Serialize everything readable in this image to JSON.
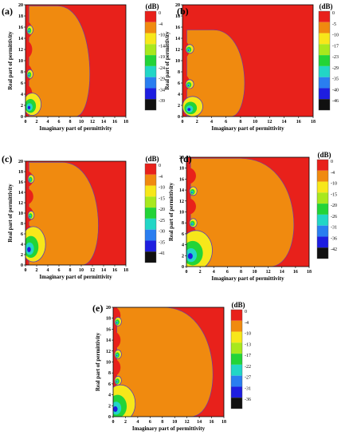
{
  "chart_data": [
    {
      "type": "heatmap",
      "panel": "(a)",
      "xlabel": "Imaginary part of permittivity",
      "ylabel": "Real part of permittivity",
      "xlim": [
        0,
        18
      ],
      "ylim": [
        0,
        20
      ],
      "xticks": [
        "0",
        "2",
        "4",
        "6",
        "8",
        "10",
        "12",
        "14",
        "16",
        "18"
      ],
      "yticks": [
        "0",
        "2",
        "4",
        "6",
        "8",
        "10",
        "12",
        "14",
        "16",
        "18",
        "20"
      ],
      "colorbar_title": "(dB)",
      "colorbar_levels": [
        "0",
        "-4",
        "-10",
        "-14",
        "-19",
        "-24",
        "-29",
        "-34",
        "-39"
      ],
      "colorbar_colors": [
        "#e8211b",
        "#f08a0f",
        "#f7e71a",
        "#a8e81d",
        "#23d437",
        "#22d6c6",
        "#2a7ef0",
        "#1e1ee0",
        "#101010"
      ],
      "region_profile": {
        "big_x": 12.8,
        "big_y": 19.8,
        "lobe_y": [
          15.5,
          12.0,
          7.8,
          4.1
        ],
        "lobe_depth": 1.2,
        "dip_y": [
          15.5,
          7.6,
          2.2
        ],
        "dip_x": 0.8,
        "dip_w": 1.6,
        "dip_h": 2.0
      }
    },
    {
      "type": "heatmap",
      "panel": "(b)",
      "xlabel": "Imaginary part of permittivity",
      "ylabel": "Real part of permittivity",
      "xlim": [
        0,
        18
      ],
      "ylim": [
        0,
        20
      ],
      "xticks": [
        "0",
        "2",
        "4",
        "6",
        "8",
        "10",
        "12",
        "14",
        "16",
        "18"
      ],
      "yticks": [
        "0",
        "2",
        "4",
        "6",
        "8",
        "10",
        "12",
        "14",
        "16",
        "18",
        "20"
      ],
      "colorbar_title": "(dB)",
      "colorbar_levels": [
        "0",
        "-5",
        "-10",
        "-17",
        "-23",
        "-29",
        "-35",
        "-40",
        "-46"
      ],
      "colorbar_colors": [
        "#e8211b",
        "#f08a0f",
        "#f7e71a",
        "#a8e81d",
        "#23d437",
        "#22d6c6",
        "#2a7ef0",
        "#1e1ee0",
        "#101010"
      ],
      "region_profile": {
        "big_x": 9.5,
        "big_y": 15.5,
        "lobe_y": [
          12.0,
          6.0
        ],
        "lobe_depth": 1.0,
        "dip_y": [
          12.1,
          5.8,
          1.8
        ],
        "dip_x": 1.0,
        "dip_w": 1.4,
        "dip_h": 1.8
      }
    },
    {
      "type": "heatmap",
      "panel": "(c)",
      "xlabel": "Imaginary part of permittivity",
      "ylabel": "Real part of permittivity",
      "xlim": [
        0,
        18
      ],
      "ylim": [
        0,
        20
      ],
      "xticks": [
        "0",
        "2",
        "4",
        "6",
        "8",
        "10",
        "12",
        "14",
        "16",
        "18"
      ],
      "yticks": [
        "0",
        "2",
        "4",
        "6",
        "8",
        "10",
        "12",
        "14",
        "16",
        "18",
        "20"
      ],
      "colorbar_title": "(dB)",
      "colorbar_levels": [
        "0",
        "-4",
        "-10",
        "-15",
        "-20",
        "-25",
        "-30",
        "-35",
        "-41"
      ],
      "colorbar_colors": [
        "#e8211b",
        "#f08a0f",
        "#f7e71a",
        "#a8e81d",
        "#23d437",
        "#22d6c6",
        "#2a7ef0",
        "#1e1ee0",
        "#101010"
      ],
      "region_profile": {
        "big_x": 14.5,
        "big_y": 19.8,
        "lobe_y": [
          16.6,
          13.2,
          9.8,
          6.2
        ],
        "lobe_depth": 1.4,
        "dip_y": [
          16.6,
          9.6,
          4.0
        ],
        "dip_x": 1.0,
        "dip_w": 2.2,
        "dip_h": 3.4
      }
    },
    {
      "type": "heatmap",
      "panel": "(d)",
      "xlabel": "Imaginary part of permittivity",
      "ylabel": "Real part of permittivity",
      "xlim": [
        0,
        18
      ],
      "ylim": [
        0,
        20
      ],
      "xticks": [
        "0",
        "2",
        "4",
        "6",
        "8",
        "10",
        "12",
        "14",
        "16",
        "18"
      ],
      "yticks": [
        "0",
        "2",
        "4",
        "6",
        "8",
        "10",
        "12",
        "14",
        "16",
        "18",
        "20"
      ],
      "colorbar_title": "(dB)",
      "colorbar_levels": [
        "0",
        "-4",
        "-10",
        "-15",
        "-20",
        "-26",
        "-31",
        "-36",
        "-42"
      ],
      "colorbar_colors": [
        "#e8211b",
        "#f08a0f",
        "#f7e71a",
        "#a8e81d",
        "#23d437",
        "#22d6c6",
        "#2a7ef0",
        "#1e1ee0",
        "#101010"
      ],
      "region_profile": {
        "big_x": 17.5,
        "big_y": 19.8,
        "lobe_y": [
          16.6,
          11.0,
          6.2
        ],
        "lobe_depth": 1.4,
        "dip_y": [
          13.8,
          8.0,
          3.0
        ],
        "dip_x": 1.0,
        "dip_w": 2.4,
        "dip_h": 3.6
      }
    },
    {
      "type": "heatmap",
      "panel": "(e)",
      "xlabel": "Imaginary part of permittivity",
      "ylabel": "Real part of permittivity",
      "xlim": [
        0,
        18
      ],
      "ylim": [
        0,
        20
      ],
      "xticks": [
        "0",
        "2",
        "4",
        "6",
        "8",
        "10",
        "12",
        "14",
        "16",
        "18"
      ],
      "yticks": [
        "0",
        "2",
        "4",
        "6",
        "8",
        "10",
        "12",
        "14",
        "16",
        "18",
        "20"
      ],
      "colorbar_title": "(dB)",
      "colorbar_levels": [
        "0",
        "-4",
        "-10",
        "-13",
        "-17",
        "-22",
        "-27",
        "-31",
        "-36"
      ],
      "colorbar_colors": [
        "#e8211b",
        "#f08a0f",
        "#f7e71a",
        "#a8e81d",
        "#23d437",
        "#22d6c6",
        "#2a7ef0",
        "#1e1ee0",
        "#101010"
      ],
      "region_profile": {
        "big_x": 18.0,
        "big_y": 20.0,
        "lobe_y": [
          18.5,
          14.0,
          9.0,
          5.0
        ],
        "lobe_depth": 1.2,
        "dip_y": [
          17.4,
          11.4,
          6.6,
          2.4
        ],
        "dip_x": 0.8,
        "dip_w": 2.4,
        "dip_h": 3.4
      }
    }
  ]
}
